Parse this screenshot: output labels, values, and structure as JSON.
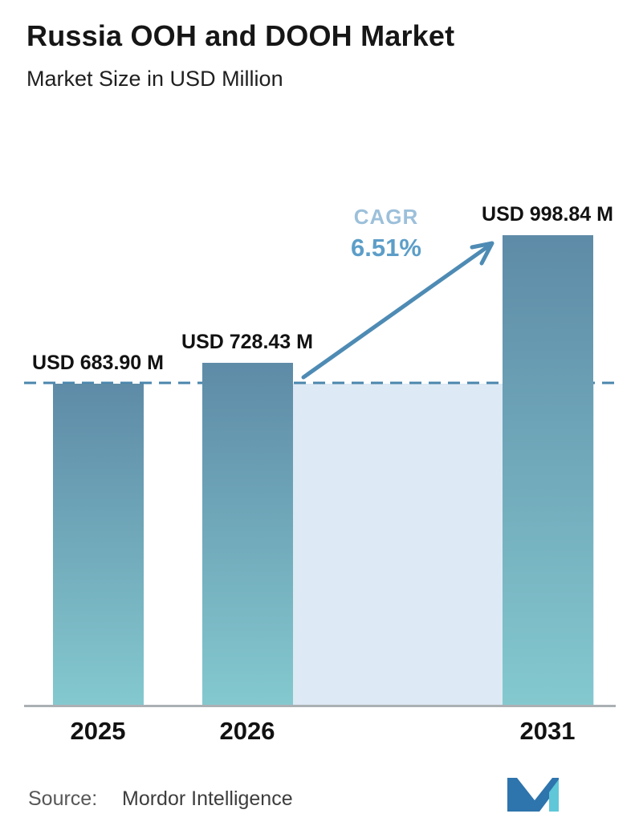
{
  "chart_data": {
    "type": "bar",
    "title": "Russia OOH and DOOH Market",
    "subtitle": "Market Size in USD Million",
    "categories": [
      "2025",
      "2026",
      "2031"
    ],
    "values": [
      683.9,
      728.43,
      998.84
    ],
    "value_labels": [
      "USD 683.90 M",
      "USD 728.43 M",
      "USD 998.84 M"
    ],
    "unit": "USD Million",
    "cagr": {
      "label": "CAGR",
      "value": "6.51%"
    },
    "ylim": [
      0,
      998.84
    ],
    "baseline_reference_value": 683.9,
    "grid": false,
    "legend": false
  },
  "source": {
    "label": "Source:",
    "value": "Mordor Intelligence"
  },
  "colors": {
    "bar_top": "#5e8ba7",
    "bar_bottom": "#84c9cf",
    "forecast_band": "#dde9f4",
    "dashed_line": "#4a86ad",
    "arrow": "#4e8bb4",
    "cagr_label": "#9cc0da",
    "cagr_value": "#5c9ec8",
    "axis_line": "#abb0b4",
    "logo_blue": "#2e74ad",
    "logo_teal": "#5fc7d7"
  }
}
